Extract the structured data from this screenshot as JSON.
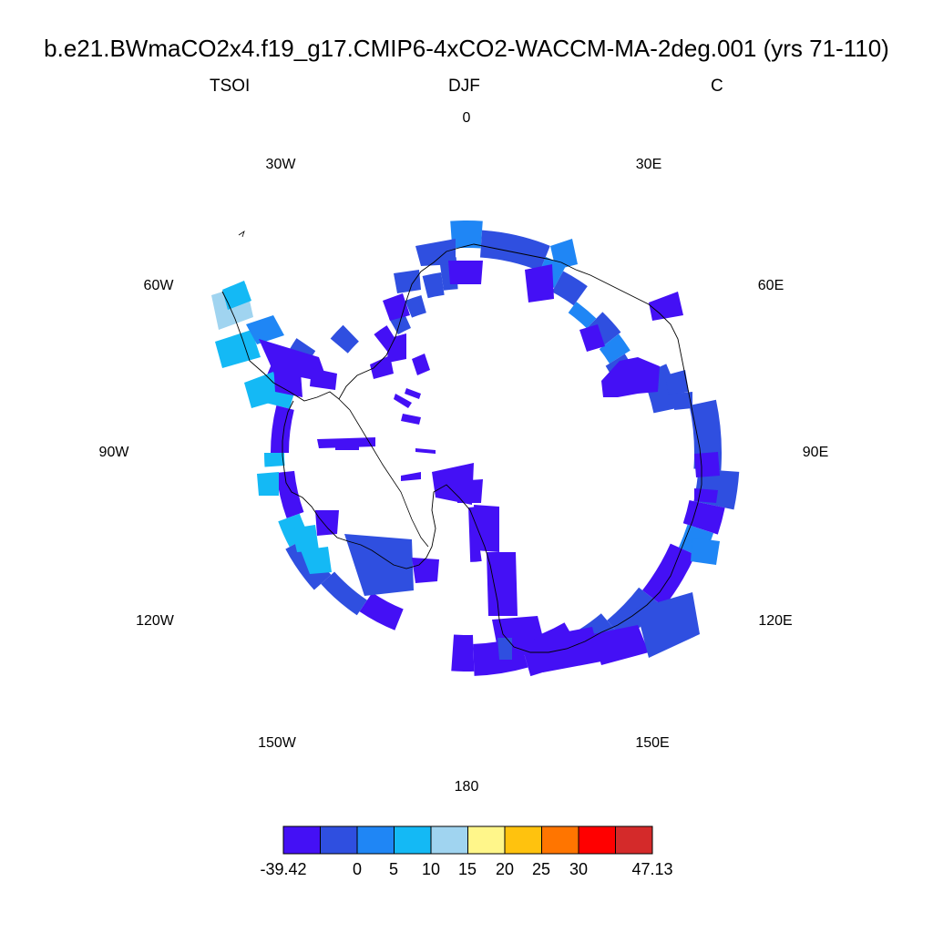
{
  "title": "b.e21.BWmaCO2x4.f19_g17.CMIP6-4xCO2-WACCM-MA-2deg.001 (yrs 71-110)",
  "left_label": "TSOI",
  "center_label": "DJF",
  "right_label": "C",
  "longitude_labels": [
    "0",
    "30E",
    "60E",
    "90E",
    "120E",
    "150E",
    "180",
    "150W",
    "120W",
    "90W",
    "60W",
    "30W"
  ],
  "colorbar": {
    "labels": [
      "-39.42",
      "0",
      "5",
      "10",
      "15",
      "20",
      "25",
      "30",
      "47.13"
    ],
    "colors": [
      "#4410f5",
      "#2f4fe0",
      "#1f86f5",
      "#14b9f5",
      "#a0d4f0",
      "#fff68a",
      "#ffc20e",
      "#ff7500",
      "#ff0000",
      "#d42a2a"
    ]
  },
  "map_colors": {
    "deep": "#4410f5",
    "mid": "#2f4fe0",
    "light": "#1f86f5",
    "cyan": "#14b9f5",
    "pale": "#a0d4f0",
    "coast": "#000000"
  }
}
